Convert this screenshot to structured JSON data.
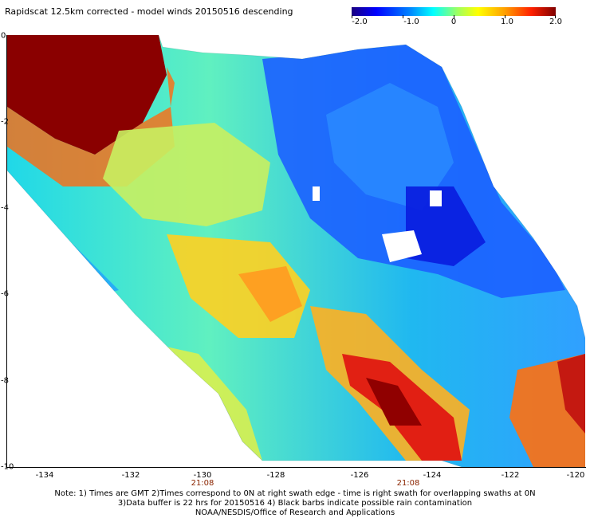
{
  "title": "Rapidscat 12.5km corrected - model winds 20150516 descending",
  "colorbar": {
    "labels": [
      "-2.0",
      "-1.0",
      "0",
      "1.0",
      "2.0"
    ],
    "stops": [
      "#1a0080",
      "#0000ff",
      "#0080ff",
      "#00ffff",
      "#a0ff60",
      "#ffff00",
      "#ffa000",
      "#ff2000",
      "#800000"
    ]
  },
  "y_axis": {
    "labels": [
      "0",
      "-2",
      "-4",
      "-6",
      "-8",
      "-10"
    ]
  },
  "x_axis": {
    "labels": [
      "-134",
      "-132",
      "-130",
      "-128",
      "-126",
      "-124",
      "-122",
      "-120"
    ]
  },
  "times": [
    "21:08",
    "21:08"
  ],
  "notes": [
    "Note: 1) Times are GMT 2)Times correspond to 0N at right swath edge - time is right swath for overlapping swaths at 0N",
    "3)Data buffer is 22 hrs for 20150516 4) Black barbs indicate possible rain contamination",
    "NOAA/NESDIS/Office of Research and Applications"
  ]
}
